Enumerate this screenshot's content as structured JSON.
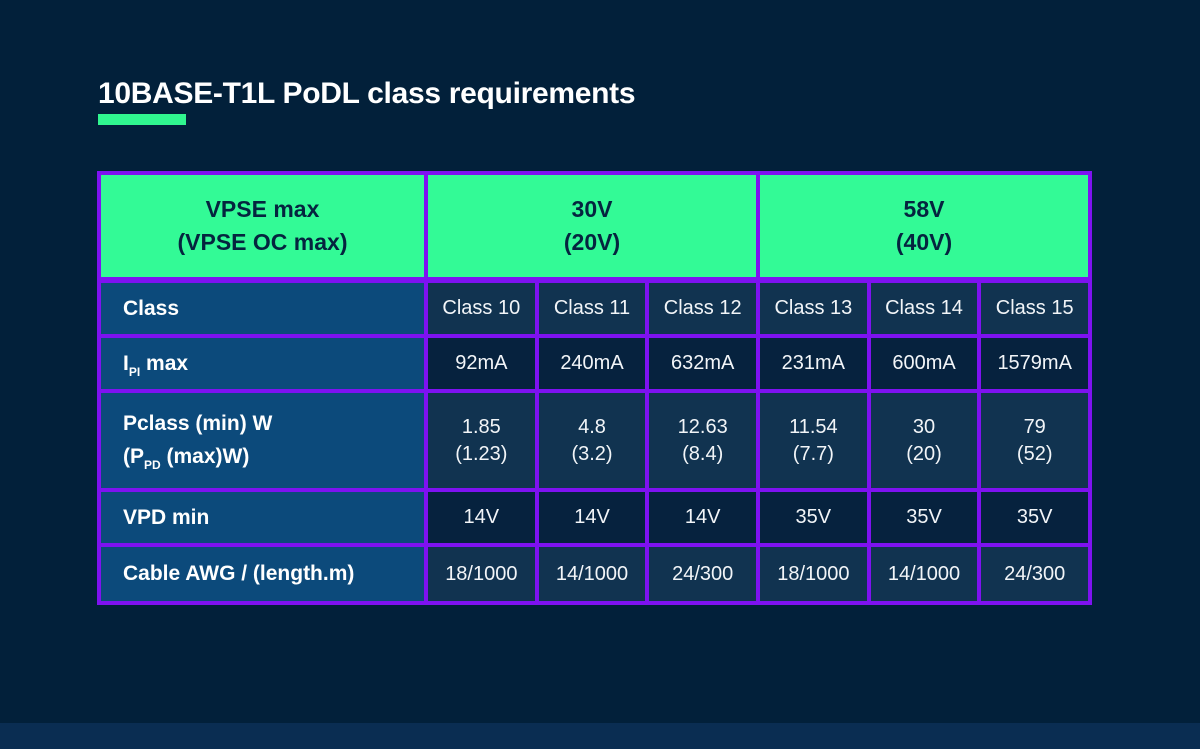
{
  "title": "10BASE-T1L PoDL class requirements",
  "colors": {
    "background": "#02203A",
    "footer_band": "#0A2D52",
    "accent_green": "#33FA96",
    "border_purple": "#7E12F1",
    "row_label_blue": "#0C4A7B",
    "data_cell_light": "#113350",
    "data_cell_dark": "#06223E",
    "header_text": "#05243F",
    "body_text": "#FFFFFF"
  },
  "chart_data": {
    "type": "table",
    "title": "10BASE-T1L PoDL class requirements",
    "header": {
      "corner_line1": "VPSE max",
      "corner_line2": "(VPSE OC max)",
      "group1_line1": "30V",
      "group1_line2": "(20V)",
      "group2_line1": "58V",
      "group2_line2": "(40V)"
    },
    "column_groups": [
      {
        "label": "30V (20V)",
        "columns": [
          "Class 10",
          "Class 11",
          "Class 12"
        ]
      },
      {
        "label": "58V (40V)",
        "columns": [
          "Class 13",
          "Class 14",
          "Class 15"
        ]
      }
    ],
    "rows": [
      {
        "label": "Class",
        "cells": [
          "Class 10",
          "Class 11",
          "Class 12",
          "Class 13",
          "Class 14",
          "Class 15"
        ]
      },
      {
        "label_pre": "I",
        "label_sub": "PI",
        "label_post": " max",
        "cells": [
          "92mA",
          "240mA",
          "632mA",
          "231mA",
          "600mA",
          "1579mA"
        ]
      },
      {
        "label_line1": "Pclass (min) W",
        "label_line2_pre": "(P",
        "label_line2_sub": "PD",
        "label_line2_post": " (max)W)",
        "cells": [
          "1.85\n(1.23)",
          "4.8\n(3.2)",
          "12.63\n(8.4)",
          "11.54\n(7.7)",
          "30\n(20)",
          "79\n(52)"
        ]
      },
      {
        "label": "VPD min",
        "cells": [
          "14V",
          "14V",
          "14V",
          "35V",
          "35V",
          "35V"
        ]
      },
      {
        "label": "Cable AWG / (length.m)",
        "cells": [
          "18/1000",
          "14/1000",
          "24/300",
          "18/1000",
          "14/1000",
          "24/300"
        ]
      }
    ]
  }
}
